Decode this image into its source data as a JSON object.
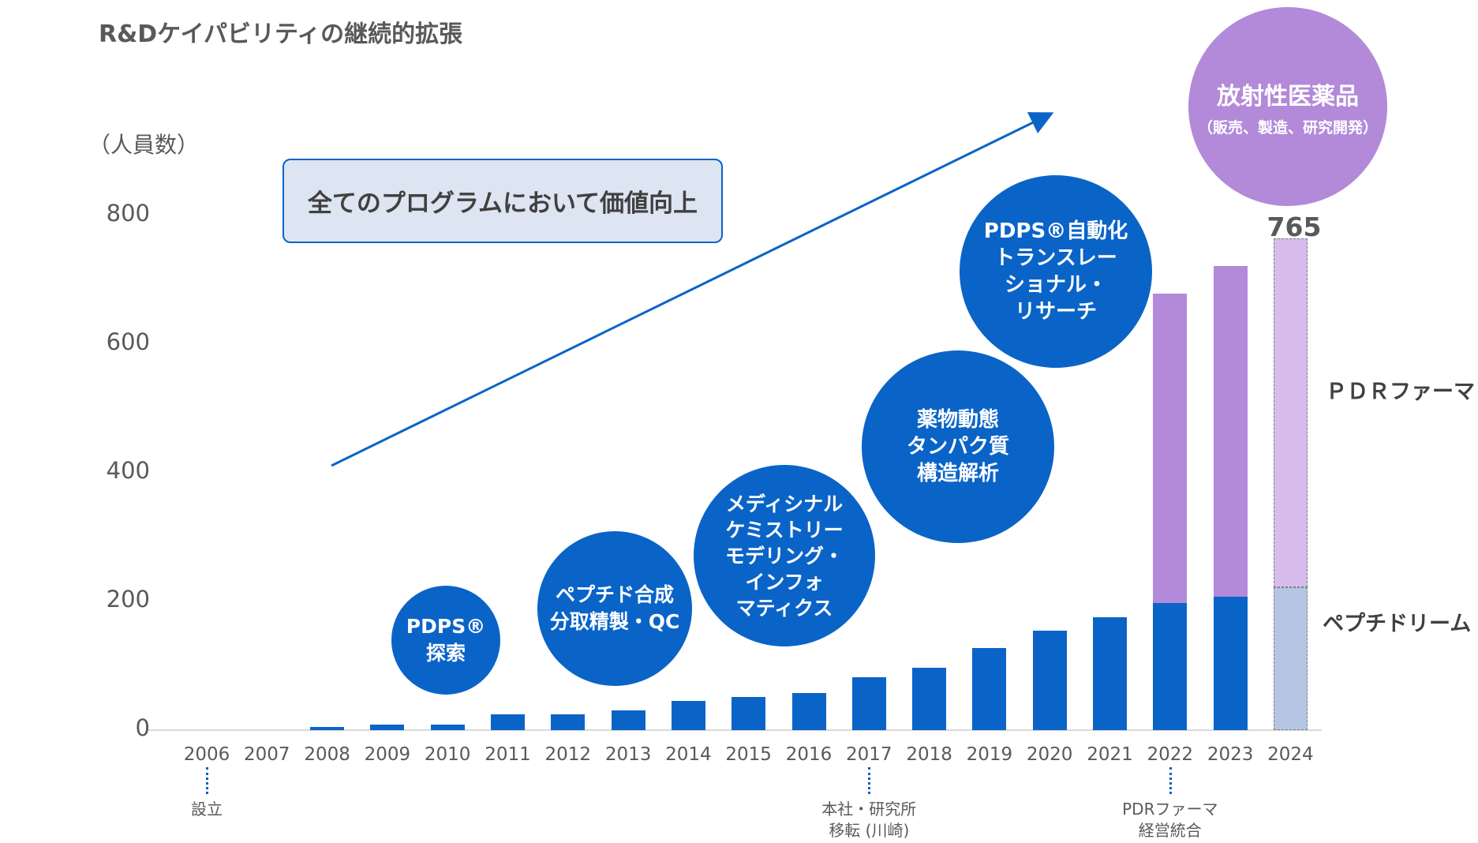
{
  "title": "R&Dケイパビリティの継続的拡張",
  "unit_label": "（人員数）",
  "callout": "全てのプログラムにおいて価値向上",
  "chart_data": {
    "type": "bar",
    "categories": [
      "2006",
      "2007",
      "2008",
      "2009",
      "2010",
      "2011",
      "2012",
      "2013",
      "2014",
      "2015",
      "2016",
      "2017",
      "2018",
      "2019",
      "2020",
      "2021",
      "2022",
      "2023",
      "2024"
    ],
    "series": [
      {
        "name": "ペプチドリーム",
        "values": [
          0,
          0,
          5,
          9,
          9,
          24,
          24,
          31,
          45,
          51,
          58,
          82,
          97,
          127,
          155,
          176,
          198,
          207,
          222
        ]
      },
      {
        "name": "PDRファーマ",
        "values": [
          0,
          0,
          0,
          0,
          0,
          0,
          0,
          0,
          0,
          0,
          0,
          0,
          0,
          0,
          0,
          0,
          480,
          515,
          543
        ]
      }
    ],
    "projected_category": "2024",
    "total_label": "765",
    "ylim": [
      0,
      850
    ],
    "yticks": [
      "0",
      "200",
      "400",
      "600",
      "800"
    ],
    "colors": {
      "peptidream": "#0a64c8",
      "pdr": "#b389d9",
      "peptidream_projected": "#b4c6e4",
      "pdr_projected": "#d6bbec"
    }
  },
  "series_labels": {
    "pdr": "ＰＤＲファーマ",
    "peptidream": "ペプチドリーム"
  },
  "bubbles": [
    {
      "text": "PDPS®\n探索"
    },
    {
      "text": "ペプチド合成\n分取精製・QC"
    },
    {
      "text": "メディシナル\nケミストリー\nモデリング・\nインフォ\nマティクス"
    },
    {
      "text": "薬物動態\nタンパク質\n構造解析"
    },
    {
      "text": "PDPS®自動化\nトランスレー\nショナル・\nリサーチ"
    }
  ],
  "radiopharma": {
    "title": "放射性医薬品",
    "subtitle": "（販売、製造、研究開発）"
  },
  "milestones": [
    {
      "year": "2006",
      "label": "設立"
    },
    {
      "year": "2017",
      "label": "本社・研究所\n移転 (川崎)"
    },
    {
      "year": "2022",
      "label": "PDRファーマ\n経営統合"
    }
  ]
}
